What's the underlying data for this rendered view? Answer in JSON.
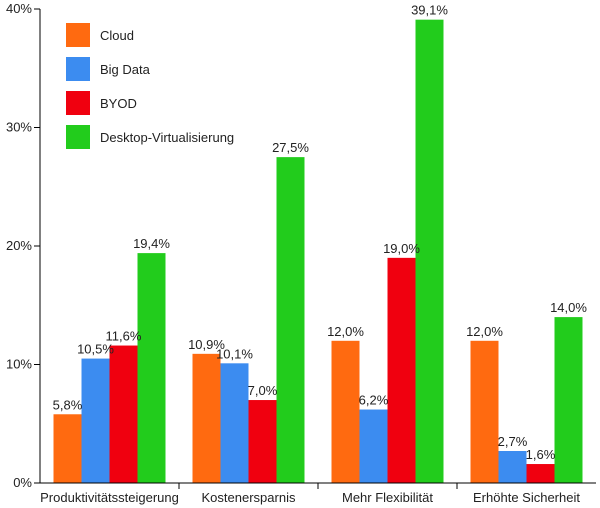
{
  "chart_data": {
    "type": "bar",
    "categories": [
      "Produktivitätssteigerung",
      "Kostenersparnis",
      "Mehr Flexibilität",
      "Erhöhte Sicherheit"
    ],
    "series": [
      {
        "name": "Cloud",
        "color": "#ff6a10",
        "values": [
          5.8,
          10.9,
          12.0,
          12.0
        ],
        "labels": [
          "5,8%",
          "10,9%",
          "12,0%",
          "12,0%"
        ]
      },
      {
        "name": "Big Data",
        "color": "#3c8cf0",
        "values": [
          10.5,
          10.1,
          6.2,
          2.7
        ],
        "labels": [
          "10,5%",
          "10,1%",
          "6,2%",
          "2,7%"
        ]
      },
      {
        "name": "BYOD",
        "color": "#f0000f",
        "values": [
          11.6,
          7.0,
          19.0,
          1.6
        ],
        "labels": [
          "11,6%",
          "7,0%",
          "19,0%",
          "1,6%"
        ]
      },
      {
        "name": "Desktop-Virtualisierung",
        "color": "#22cc1c",
        "values": [
          19.4,
          27.5,
          39.1,
          14.0
        ],
        "labels": [
          "19,4%",
          "27,5%",
          "39,1%",
          "14,0%"
        ]
      }
    ],
    "ylim": [
      0,
      40
    ],
    "yticks": [
      0,
      10,
      20,
      30,
      40
    ],
    "ytick_labels": [
      "0%",
      "10%",
      "20%",
      "30%",
      "40%"
    ],
    "grid": false,
    "legend_position": "top-left"
  }
}
